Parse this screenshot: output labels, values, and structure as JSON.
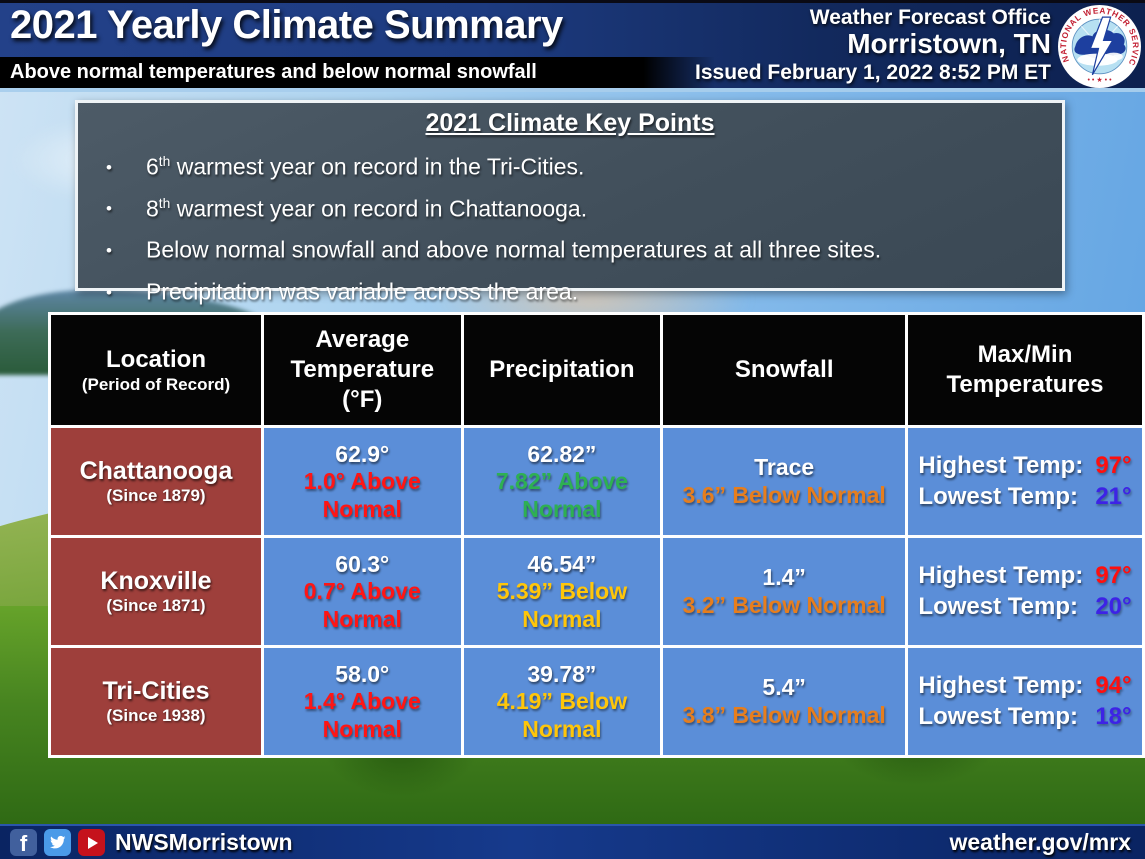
{
  "palette": {
    "above_normal_red": "#ff1515",
    "above_normal_green": "#2eb052",
    "below_normal_gold": "#ffc60a",
    "below_normal_orange": "#e67e1e",
    "high_temp_red": "#ff0f0f",
    "low_temp_blue": "#3d23e6",
    "location_cell_red": "#9e3f3b",
    "data_cell_blue": "#5b8ed8",
    "header_navy": "#1d3b80"
  },
  "header": {
    "title": "2021 Yearly Climate Summary",
    "subtitle": "Above normal temperatures and below normal snowfall",
    "office_line1": "Weather Forecast Office",
    "office_line2": "Morristown, TN",
    "issued_line": "Issued February 1, 2022 8:52 PM ET",
    "logo_ring_text": "NATIONAL WEATHER SERVICE",
    "logo_bottom_marks": "• • ★ • •"
  },
  "key_points": {
    "title": "2021 Climate Key Points",
    "bullets": [
      {
        "pre": "6",
        "sup": "th",
        "rest": " warmest year on record in the Tri-Cities."
      },
      {
        "pre": "8",
        "sup": "th",
        "rest": " warmest year on record in Chattanooga."
      },
      {
        "pre": "",
        "sup": "",
        "rest": "Below normal snowfall and above normal temperatures at all three sites."
      },
      {
        "pre": "",
        "sup": "",
        "rest": "Precipitation was variable across the area."
      }
    ]
  },
  "table": {
    "headers": {
      "location_title": "Location",
      "location_sub": "(Period of Record)",
      "avg_temp": "Average Temperature (°F)",
      "precipitation": "Precipitation",
      "snowfall": "Snowfall",
      "max_min": "Max/Min Temperatures"
    },
    "rows": [
      {
        "location": "Chattanooga",
        "period": "(Since 1879)",
        "avg_temp": {
          "value": "62.9°",
          "anomaly": "1.0° Above Normal",
          "color": "#ff1515"
        },
        "precipitation": {
          "value": "62.82”",
          "anomaly": "7.82” Above Normal",
          "color": "#2eb052"
        },
        "snowfall": {
          "value": "Trace",
          "anomaly": "3.6” Below Normal",
          "color": "#e67e1e"
        },
        "extremes": {
          "high_label": "Highest Temp:",
          "high_value": "97°",
          "low_label": "Lowest Temp:",
          "low_value": "21°"
        }
      },
      {
        "location": "Knoxville",
        "period": "(Since 1871)",
        "avg_temp": {
          "value": "60.3°",
          "anomaly": "0.7° Above Normal",
          "color": "#ff1515"
        },
        "precipitation": {
          "value": "46.54”",
          "anomaly": "5.39” Below Normal",
          "color": "#ffc60a"
        },
        "snowfall": {
          "value": "1.4”",
          "anomaly": "3.2” Below Normal",
          "color": "#e67e1e"
        },
        "extremes": {
          "high_label": "Highest Temp:",
          "high_value": "97°",
          "low_label": "Lowest Temp:",
          "low_value": "20°"
        }
      },
      {
        "location": "Tri-Cities",
        "period": "(Since 1938)",
        "avg_temp": {
          "value": "58.0°",
          "anomaly": "1.4° Above Normal",
          "color": "#ff1515"
        },
        "precipitation": {
          "value": "39.78”",
          "anomaly": "4.19” Below Normal",
          "color": "#ffc60a"
        },
        "snowfall": {
          "value": "5.4”",
          "anomaly": "3.8” Below Normal",
          "color": "#e67e1e"
        },
        "extremes": {
          "high_label": "Highest Temp:",
          "high_value": "94°",
          "low_label": "Lowest Temp:",
          "low_value": "18°"
        }
      }
    ]
  },
  "footer": {
    "account": "NWSMorristown",
    "url": "weather.gov/mrx"
  }
}
